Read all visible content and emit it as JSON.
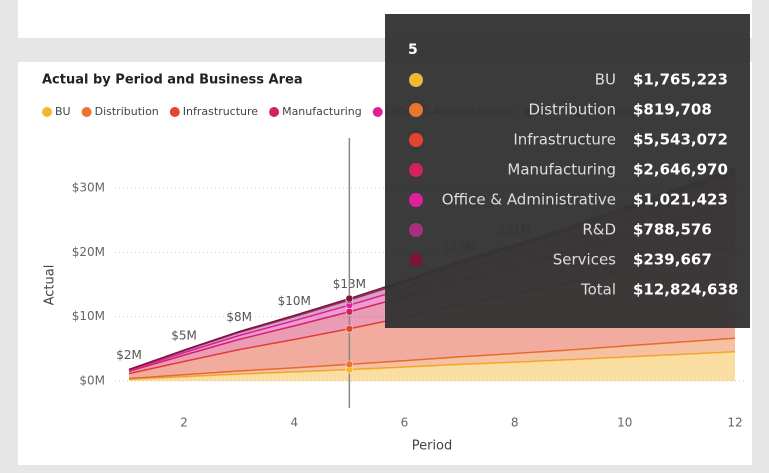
{
  "chart_data": {
    "type": "stacked_area",
    "title": "Actual by Period and Business Area",
    "xlabel": "Period",
    "ylabel": "Actual",
    "x": [
      1,
      2,
      3,
      4,
      5,
      6,
      7,
      8,
      9,
      10,
      11,
      12
    ],
    "xlim": [
      1,
      12
    ],
    "xticks": [
      2,
      4,
      6,
      8,
      10,
      12
    ],
    "ylim": [
      0,
      35000000
    ],
    "yticks": [
      {
        "value": 0,
        "label": "$0M"
      },
      {
        "value": 10000000,
        "label": "$10M"
      },
      {
        "value": 20000000,
        "label": "$20M"
      },
      {
        "value": 30000000,
        "label": "$30M"
      }
    ],
    "grid": true,
    "series": [
      {
        "name": "BU",
        "color": "#f5b62f",
        "values": [
          250000,
          660000,
          1060000,
          1400000,
          1765223,
          2150000,
          2560000,
          2920000,
          3300000,
          3720000,
          4130000,
          4540000
        ]
      },
      {
        "name": "Distribution",
        "color": "#e8762d",
        "values": [
          120000,
          310000,
          490000,
          650000,
          819708,
          1000000,
          1190000,
          1350000,
          1530000,
          1730000,
          1920000,
          2110000
        ]
      },
      {
        "name": "Infrastructure",
        "color": "#e3462b",
        "values": [
          780000,
          2070000,
          3330000,
          4410000,
          5543072,
          6740000,
          8040000,
          9160000,
          10370000,
          11670000,
          12970000,
          14260000
        ]
      },
      {
        "name": "Manufacturing",
        "color": "#d0245a",
        "values": [
          370000,
          990000,
          1590000,
          2110000,
          2646970,
          3220000,
          3840000,
          4380000,
          4950000,
          5570000,
          6190000,
          6810000
        ]
      },
      {
        "name": "Office & Administrative",
        "color": "#e0209a",
        "values": [
          140000,
          380000,
          610000,
          810000,
          1021423,
          1240000,
          1480000,
          1690000,
          1910000,
          2150000,
          2390000,
          2630000
        ]
      },
      {
        "name": "R&D",
        "color": "#a8307a",
        "values": [
          110000,
          300000,
          470000,
          630000,
          788576,
          960000,
          1140000,
          1300000,
          1480000,
          1660000,
          1850000,
          2030000
        ]
      },
      {
        "name": "Services",
        "color": "#7a1638",
        "values": [
          30000,
          90000,
          140000,
          190000,
          239667,
          290000,
          350000,
          400000,
          450000,
          500000,
          560000,
          620000
        ]
      }
    ],
    "total_labels": [
      "$2M",
      "$5M",
      "$8M",
      "$10M",
      "$13M",
      null,
      "$19M",
      "$21M",
      null,
      null,
      null,
      null
    ],
    "hover_index": 4
  },
  "tooltip": {
    "title": "5",
    "rows": [
      {
        "name": "BU",
        "value": "$1,765,223"
      },
      {
        "name": "Distribution",
        "value": "$819,708"
      },
      {
        "name": "Infrastructure",
        "value": "$5,543,072"
      },
      {
        "name": "Manufacturing",
        "value": "$2,646,970"
      },
      {
        "name": "Office & Administrative",
        "value": "$1,021,423"
      },
      {
        "name": "R&D",
        "value": "$788,576"
      },
      {
        "name": "Services",
        "value": "$239,667"
      },
      {
        "name": "Total",
        "value": "$12,824,638"
      }
    ]
  }
}
